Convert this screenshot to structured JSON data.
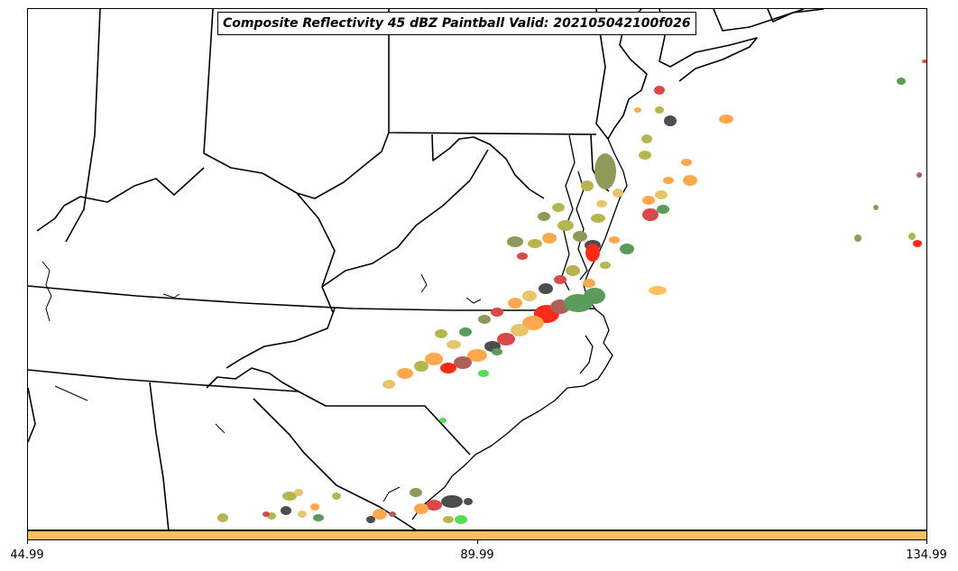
{
  "map": {
    "title": "Composite Reflectivity 45 dBZ Paintball Valid: 202105042100f026",
    "colors": {
      "boundary": "#000000",
      "paintball": [
        "#4d4d4d",
        "#d84a4a",
        "#ffa84d",
        "#e8c56a",
        "#b5b64f",
        "#8f9a5a",
        "#5a9a5a",
        "#55dd55",
        "#ff2a1a",
        "#b0605a"
      ]
    }
  },
  "colorbar": {
    "color": "#ffc15e",
    "ticks": [
      "44.99",
      "89.99",
      "134.99"
    ]
  }
}
